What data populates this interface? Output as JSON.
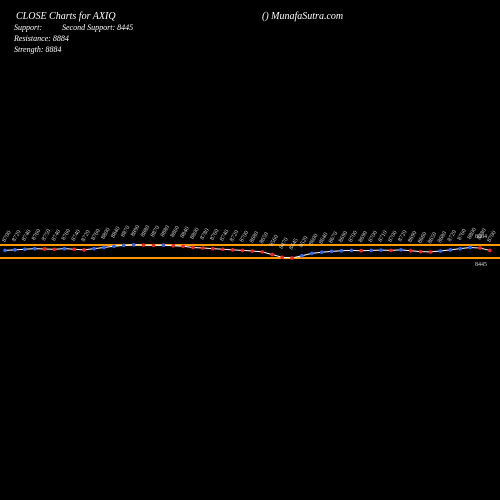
{
  "chart_data": {
    "type": "line",
    "title": "CLOSE Charts for AXIQ",
    "site": "() MunafaSutra.com",
    "support_text": "Support:",
    "second_support_text": "Second Support: 8445",
    "resistance_text": "Resistance: 8884",
    "strength_text": "Strength: 8884",
    "support": 8445,
    "resistance": 8884,
    "level_color": "#ff9900",
    "line_color": "#ffffff",
    "up_color": "#3366ff",
    "down_color": "#ff2222",
    "ylim": [
      8242,
      9862
    ],
    "values": [
      8700,
      8720,
      8740,
      8760,
      8750,
      8740,
      8760,
      8740,
      8720,
      8760,
      8800,
      8840,
      8870,
      8890,
      8880,
      8870,
      8880,
      8860,
      8840,
      8800,
      8780,
      8760,
      8740,
      8720,
      8700,
      8680,
      8650,
      8560,
      8470,
      8445,
      8520,
      8600,
      8640,
      8670,
      8690,
      8700,
      8690,
      8700,
      8710,
      8700,
      8720,
      8690,
      8660,
      8650,
      8680,
      8720,
      8760,
      8800,
      8780,
      8700
    ]
  }
}
